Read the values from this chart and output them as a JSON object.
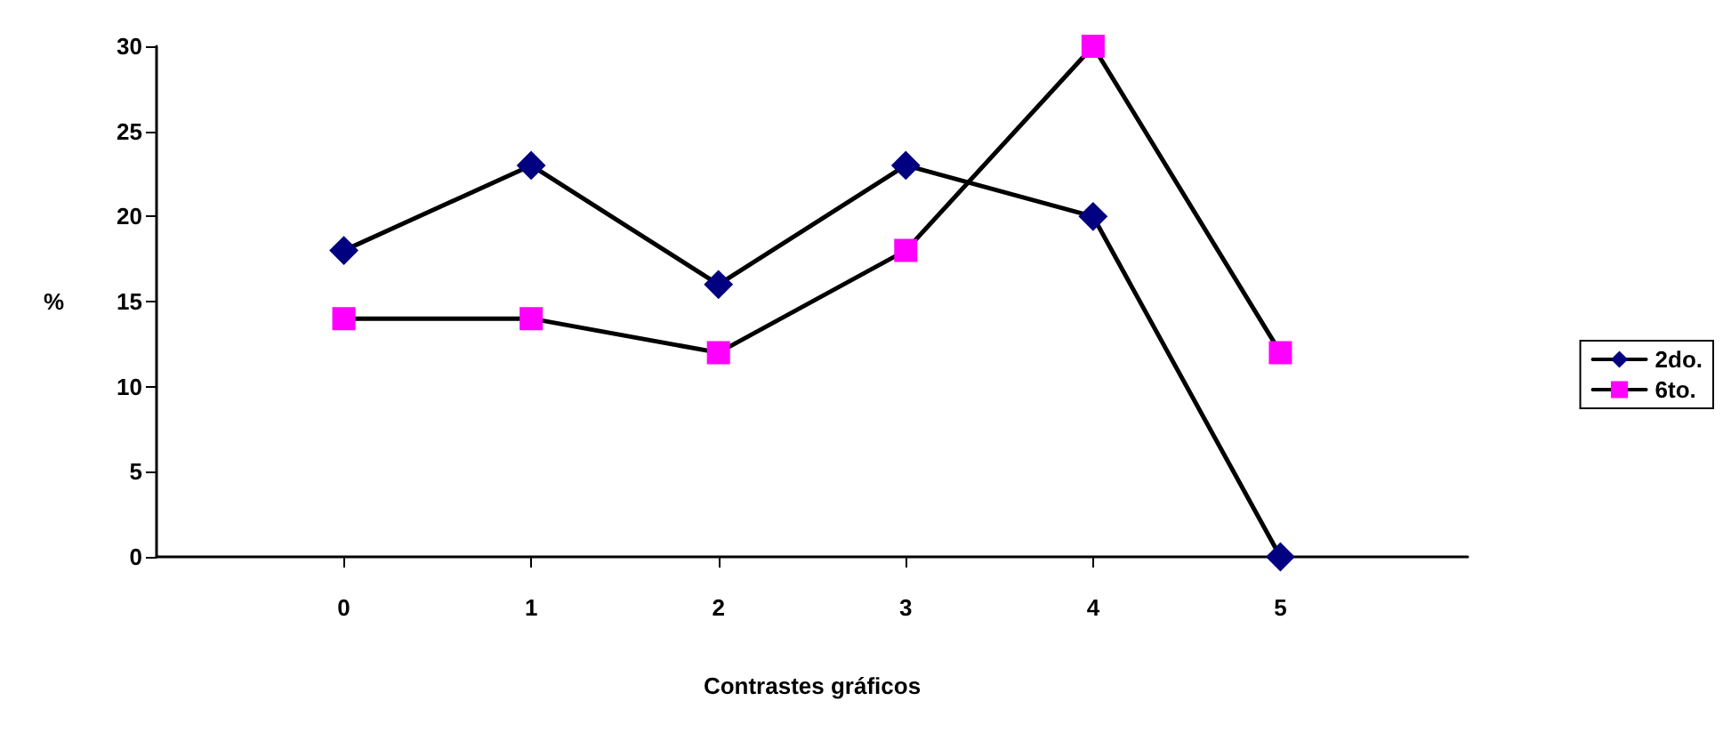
{
  "chart_data": {
    "type": "line",
    "xlabel": "Contrastes gráficos",
    "ylabel": "%",
    "x": [
      0,
      1,
      2,
      3,
      4,
      5
    ],
    "xlim": [
      -1,
      6
    ],
    "xticks": [
      0,
      1,
      2,
      3,
      4,
      5
    ],
    "ylim": [
      0,
      30
    ],
    "yticks": [
      0,
      5,
      10,
      15,
      20,
      25,
      30
    ],
    "grid": false,
    "legend": "right",
    "line_style": "solid",
    "series": [
      {
        "name": "2do.",
        "color": "#000080",
        "marker": "diamond",
        "values": [
          18,
          23,
          16,
          23,
          20,
          0
        ]
      },
      {
        "name": "6to.",
        "color": "#ff00ff",
        "marker": "square",
        "values": [
          14,
          14,
          12,
          18,
          30,
          12
        ]
      }
    ]
  }
}
